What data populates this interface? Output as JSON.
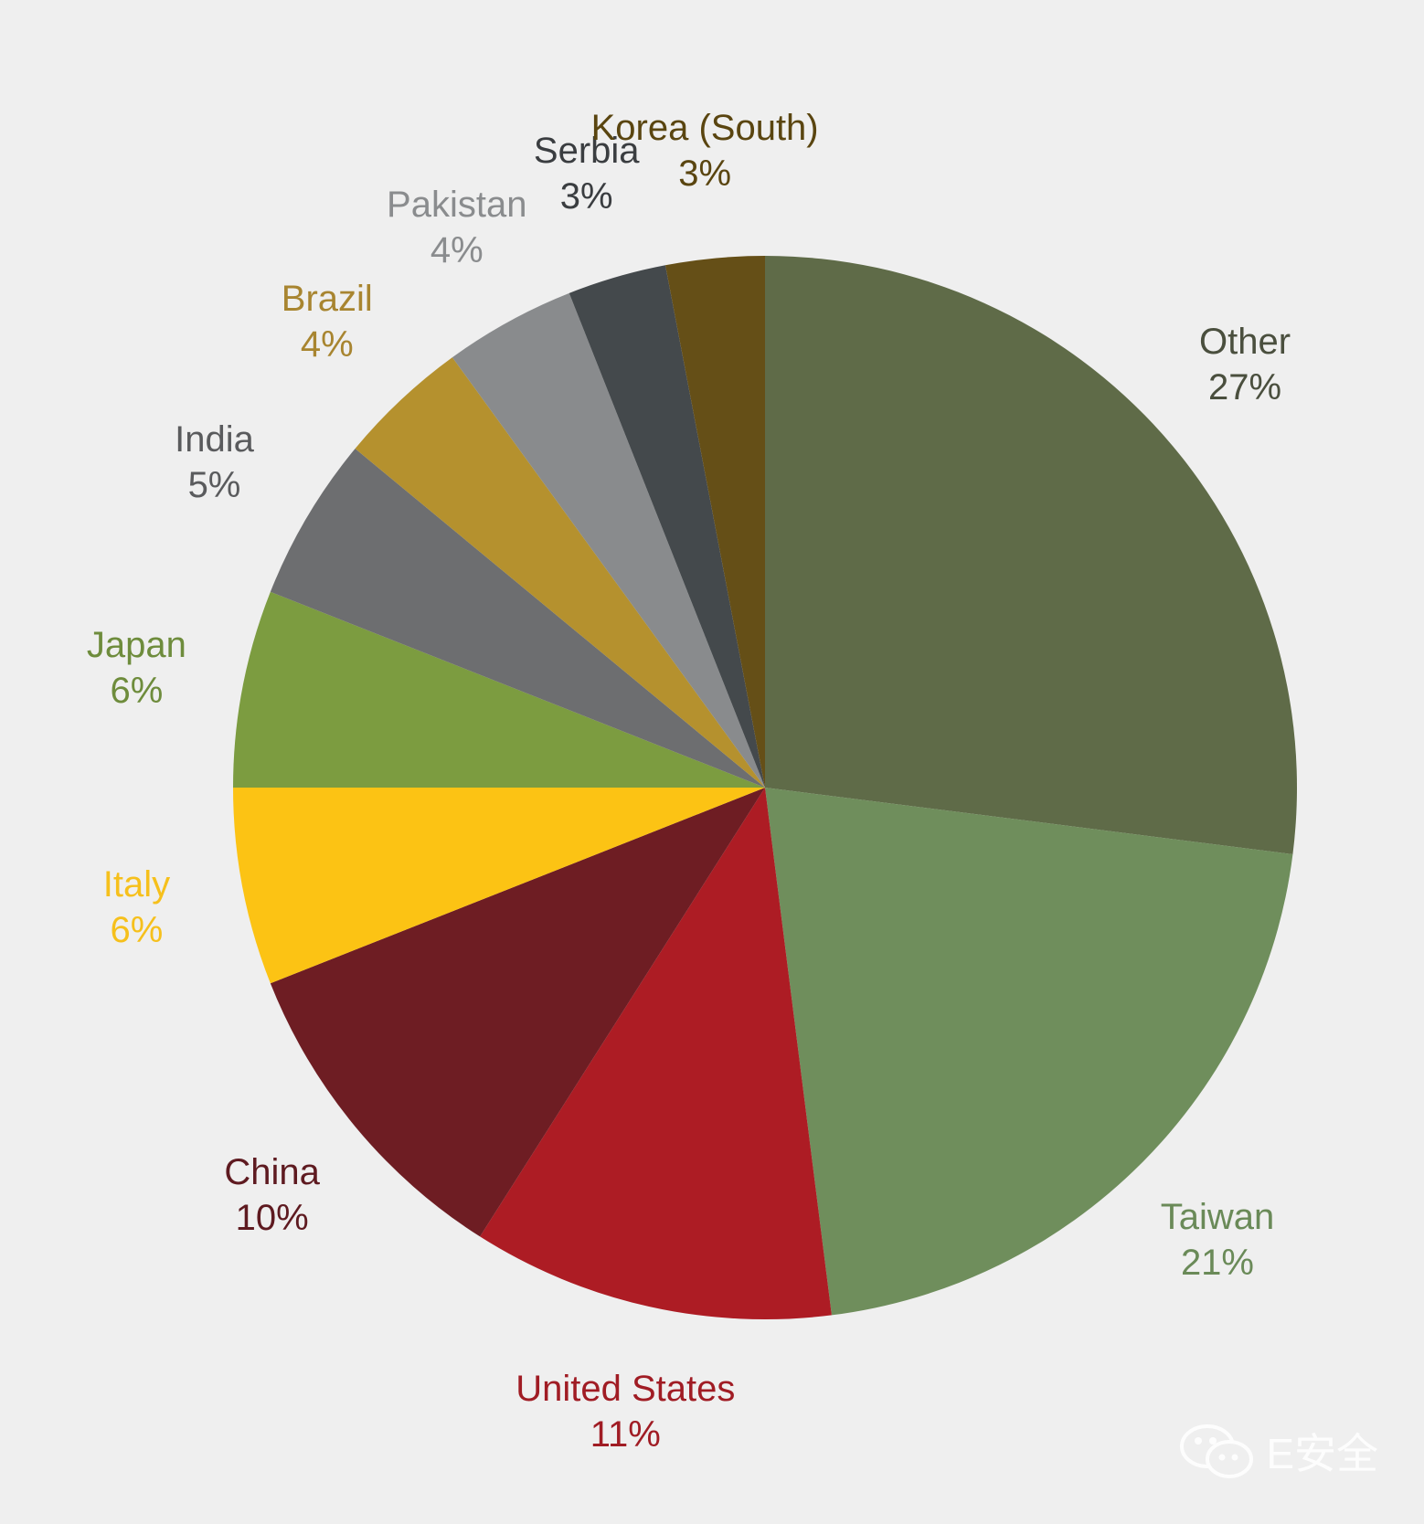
{
  "chart_data": {
    "type": "pie",
    "title": "",
    "start_angle_deg": 0,
    "direction": "clockwise",
    "slices": [
      {
        "label": "Other",
        "value": 27,
        "pct_label": "27%",
        "color": "#5f6b48",
        "label_color": "#4a4f3e"
      },
      {
        "label": "Taiwan",
        "value": 21,
        "pct_label": "21%",
        "color": "#6f8e5c",
        "label_color": "#6a8a58"
      },
      {
        "label": "United States",
        "value": 11,
        "pct_label": "11%",
        "color": "#ad1c24",
        "label_color": "#a01c24"
      },
      {
        "label": "China",
        "value": 10,
        "pct_label": "10%",
        "color": "#6e1d23",
        "label_color": "#5e1a20"
      },
      {
        "label": "Italy",
        "value": 6,
        "pct_label": "6%",
        "color": "#fcc314",
        "label_color": "#f6c01c"
      },
      {
        "label": "Japan",
        "value": 6,
        "pct_label": "6%",
        "color": "#7c9c40",
        "label_color": "#6e8c3c"
      },
      {
        "label": "India",
        "value": 5,
        "pct_label": "5%",
        "color": "#6d6e70",
        "label_color": "#5a5b5d"
      },
      {
        "label": "Brazil",
        "value": 4,
        "pct_label": "4%",
        "color": "#b5912e",
        "label_color": "#a88530"
      },
      {
        "label": "Pakistan",
        "value": 4,
        "pct_label": "4%",
        "color": "#898b8d",
        "label_color": "#8a8c8e"
      },
      {
        "label": "Serbia",
        "value": 3,
        "pct_label": "3%",
        "color": "#44494c",
        "label_color": "#3a3d40"
      },
      {
        "label": "Korea (South)",
        "value": 3,
        "pct_label": "3%",
        "color": "#654f17",
        "label_color": "#5a4510"
      }
    ]
  },
  "watermark": {
    "text": "E安全",
    "icon": "wechat-icon"
  }
}
